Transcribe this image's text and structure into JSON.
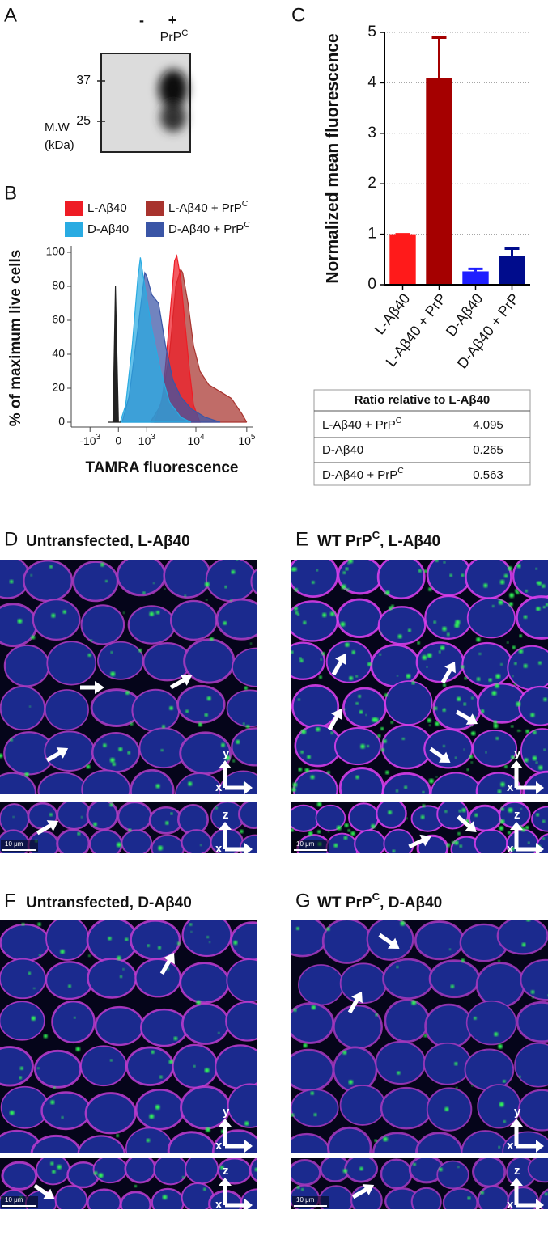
{
  "panel_a": {
    "letter": "A",
    "lanes": [
      "-",
      "+"
    ],
    "lane_label": {
      "text": "PrP",
      "sup": "C"
    },
    "markers": [
      "37",
      "25"
    ],
    "mw_label": [
      "M.W",
      "(kDa)"
    ]
  },
  "chart_data": [
    {
      "type": "area",
      "panel_label": "B",
      "xlabel": "TAMRA fluorescence",
      "ylabel": "% of maximum live cells",
      "xscale": "biexponential",
      "xlim": [
        -2500,
        130000
      ],
      "ylim": [
        0,
        100
      ],
      "yticks": [
        0,
        20,
        40,
        60,
        80,
        100
      ],
      "xticks": [
        {
          "value": -1000,
          "label": {
            "text": "-10",
            "sup": "3"
          }
        },
        0,
        {
          "value": 1000,
          "label": {
            "text": "10",
            "sup": "3"
          }
        },
        {
          "value": 10000,
          "label": {
            "text": "10",
            "sup": "4"
          }
        },
        {
          "value": 100000,
          "label": {
            "text": "10",
            "sup": "5"
          }
        }
      ],
      "series": [
        {
          "name": {
            "text": "L-Aβ40"
          },
          "color": "#ee1c25",
          "x": [
            1500,
            2200,
            3000,
            3800,
            4200,
            5000,
            6000,
            7500,
            9000,
            12000
          ],
          "values": [
            0,
            15,
            60,
            95,
            98,
            85,
            60,
            30,
            10,
            0
          ]
        },
        {
          "name": {
            "text": "L-Aβ40 + PrP",
            "sup": "C"
          },
          "color": "#a8332e",
          "x": [
            1200,
            2000,
            3000,
            4000,
            5000,
            5500,
            7000,
            9000,
            12000,
            18000,
            30000,
            50000,
            80000,
            100000
          ],
          "values": [
            0,
            10,
            40,
            80,
            90,
            88,
            70,
            45,
            30,
            22,
            18,
            14,
            5,
            0
          ]
        },
        {
          "name": {
            "text": "D-Aβ40"
          },
          "color": "#29abe2",
          "x": [
            50,
            200,
            400,
            600,
            700,
            900,
            1300,
            2000,
            3000,
            5000,
            8000
          ],
          "values": [
            0,
            10,
            45,
            85,
            97,
            80,
            55,
            30,
            12,
            3,
            0
          ]
        },
        {
          "name": {
            "text": "D-Aβ40 + PrP",
            "sup": "C"
          },
          "color": "#3a55a6",
          "x": [
            100,
            300,
            600,
            900,
            1000,
            1300,
            1800,
            2500,
            3500,
            5000,
            8000,
            15000,
            30000
          ],
          "values": [
            0,
            15,
            55,
            88,
            86,
            75,
            70,
            45,
            25,
            15,
            8,
            3,
            0
          ]
        },
        {
          "color": "#222222",
          "x": [
            -300,
            -150,
            -80,
            0,
            80
          ],
          "values": [
            0,
            0,
            80,
            0,
            0
          ]
        }
      ]
    },
    {
      "type": "bar",
      "panel_label": "C",
      "ylabel": "Normalized mean fluorescence",
      "categories": [
        "L-Aβ40",
        "L-Aβ40 + PrP",
        "D-Aβ40",
        "D-Aβ40 + PrP"
      ],
      "values": [
        1,
        4.095,
        0.265,
        0.563
      ],
      "errors": [
        0,
        0.8,
        0.05,
        0.15
      ],
      "colors": [
        "#ff1a1a",
        "#a50000",
        "#1f1fff",
        "#000c8c"
      ],
      "ylim": [
        0,
        5
      ],
      "yticks": [
        0,
        1,
        2,
        3,
        4,
        5
      ],
      "grid": true
    }
  ],
  "table": {
    "header": "Ratio relative to L-Aβ40",
    "rows": [
      [
        {
          "text": "L-Aβ40 + PrP",
          "sup": "C"
        },
        "4.095"
      ],
      [
        {
          "text": "D-Aβ40"
        },
        "0.265"
      ],
      [
        {
          "text": "D-Aβ40 + PrP",
          "sup": "C"
        },
        "0.563"
      ]
    ]
  },
  "micrographs": [
    {
      "letter": "D",
      "title": {
        "text": "Untransfected, L-Aβ40"
      },
      "xy_axes": [
        "x",
        "y"
      ],
      "xz_axes": [
        "x",
        "z"
      ],
      "scale_bar": "10 μm"
    },
    {
      "letter": "E",
      "title": {
        "text": "WT PrP",
        "sup": "C",
        "tail": ", L-Aβ40"
      },
      "xy_axes": [
        "x",
        "y"
      ],
      "xz_axes": [
        "x",
        "z"
      ],
      "scale_bar": "10 μm"
    },
    {
      "letter": "F",
      "title": {
        "text": "Untransfected, D-Aβ40"
      },
      "xy_axes": [
        "x",
        "y"
      ],
      "xz_axes": [
        "x",
        "z"
      ],
      "scale_bar": "10 μm"
    },
    {
      "letter": "G",
      "title": {
        "text": "WT PrP",
        "sup": "C",
        "tail": ", D-Aβ40"
      },
      "xy_axes": [
        "x",
        "y"
      ],
      "xz_axes": [
        "x",
        "z"
      ],
      "scale_bar": "10 μm"
    }
  ]
}
